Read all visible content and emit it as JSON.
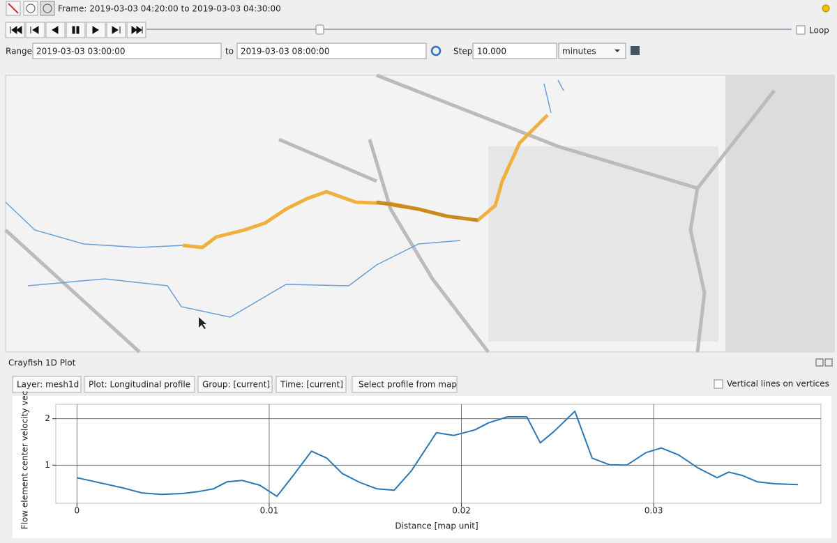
{
  "toolbar": {
    "frame_label": "Frame: 2019-03-03 04:20:00 to 2019-03-03 04:30:00"
  },
  "playback": {
    "loop_label": "Loop"
  },
  "range": {
    "label": "Range",
    "from": "2019-03-03 03:00:00",
    "to_label": "to",
    "to": "2019-03-03 08:00:00",
    "step_label": "Step",
    "step": "10.000",
    "unit": "minutes"
  },
  "plot_panel": {
    "title": "Crayfish 1D Plot",
    "buttons": [
      "Layer: mesh1d",
      "Plot: Longitudinal profile",
      "Group: [current]",
      "Time: [current]",
      "Select profile from map"
    ],
    "vertical_lines_label": "Vertical lines on vertices"
  },
  "chart_data": {
    "type": "line",
    "xlabel": "Distance [map unit]",
    "ylabel": "Flow element center velocity vec",
    "x": [
      0,
      0.0013,
      0.0024,
      0.0034,
      0.0044,
      0.0055,
      0.0063,
      0.0071,
      0.0078,
      0.0086,
      0.0095,
      0.0104,
      0.0112,
      0.0122,
      0.013,
      0.0138,
      0.0147,
      0.0156,
      0.0165,
      0.0174,
      0.0187,
      0.0196,
      0.0207,
      0.0214,
      0.0224,
      0.0234,
      0.0241,
      0.0248,
      0.0252,
      0.0259,
      0.0268,
      0.0277,
      0.0286,
      0.0296,
      0.0304,
      0.0313,
      0.0323,
      0.0333,
      0.0339,
      0.0346,
      0.0354,
      0.0363,
      0.0375
    ],
    "values": [
      0.73,
      0.61,
      0.51,
      0.4,
      0.37,
      0.39,
      0.43,
      0.49,
      0.64,
      0.67,
      0.57,
      0.33,
      0.75,
      1.3,
      1.15,
      0.82,
      0.63,
      0.49,
      0.46,
      0.88,
      1.7,
      1.64,
      1.76,
      1.91,
      2.04,
      2.04,
      1.48,
      1.72,
      1.88,
      2.16,
      1.15,
      1.01,
      1.0,
      1.27,
      1.37,
      1.22,
      0.94,
      0.73,
      0.85,
      0.78,
      0.64,
      0.6,
      0.58
    ],
    "color": "#2a77b8",
    "xlim": [
      -0.0011,
      0.0387
    ],
    "ylim": [
      0.18,
      2.31
    ],
    "xticks": [
      0,
      0.01,
      0.02,
      0.03
    ],
    "yticks": [
      1,
      2
    ],
    "grid": true
  }
}
